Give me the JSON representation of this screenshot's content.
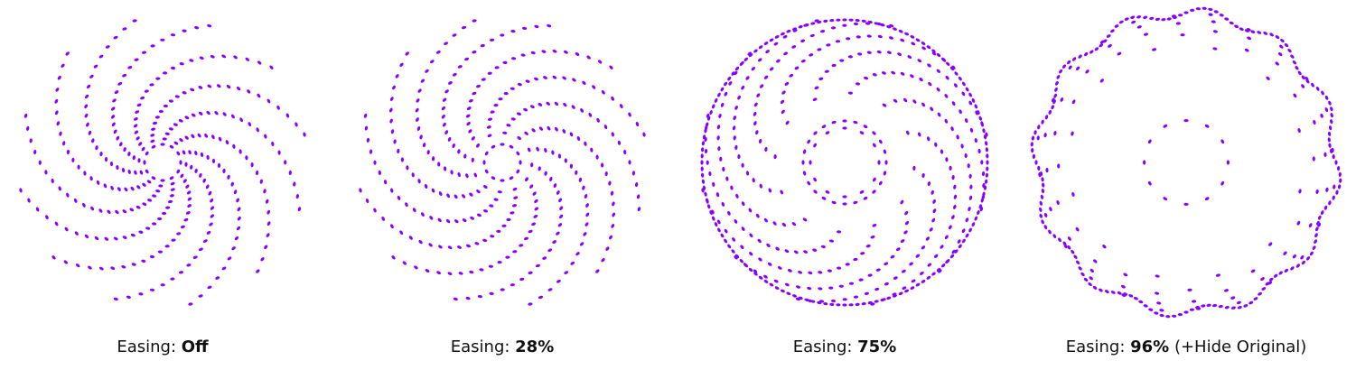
{
  "colors": {
    "dot": "#8800ff",
    "caption": "#111111",
    "background": "#ffffff"
  },
  "panels": [
    {
      "caption_prefix": "Easing: ",
      "caption_value": "Off",
      "caption_suffix": "",
      "easing": 0.0,
      "hide_original": false
    },
    {
      "caption_prefix": "Easing: ",
      "caption_value": "28%",
      "caption_suffix": "",
      "easing": 0.28,
      "hide_original": false
    },
    {
      "caption_prefix": "Easing: ",
      "caption_value": "75%",
      "caption_suffix": "",
      "easing": 0.75,
      "hide_original": false
    },
    {
      "caption_prefix": "Easing: ",
      "caption_value": "96%",
      "caption_suffix": " (+Hide Original)",
      "easing": 0.96,
      "hide_original": true
    }
  ]
}
